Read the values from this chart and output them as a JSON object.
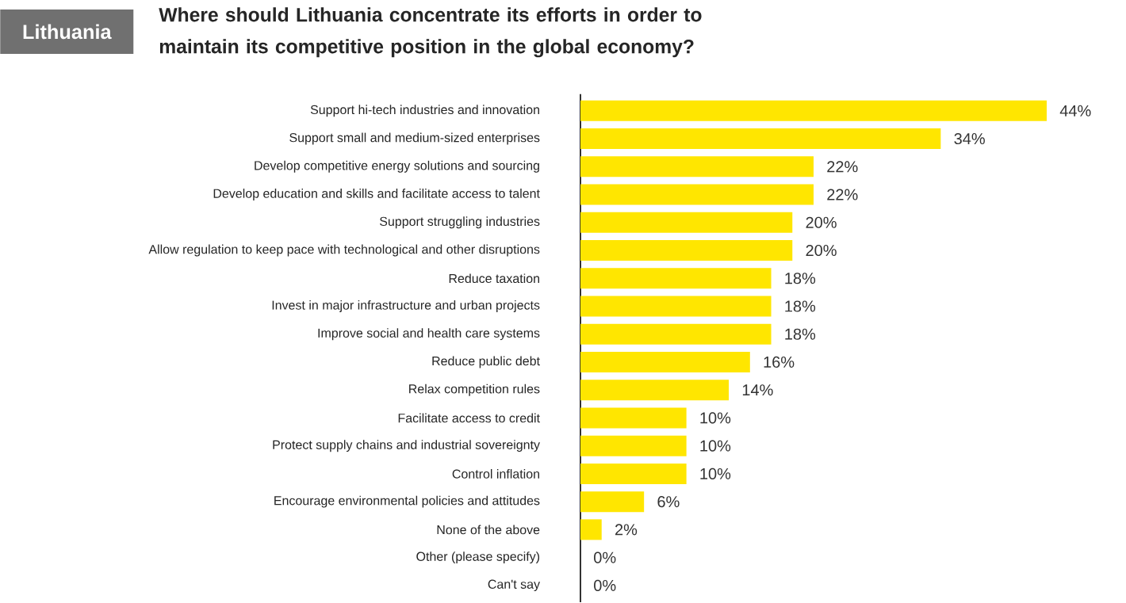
{
  "chart_data": {
    "type": "bar",
    "orientation": "horizontal",
    "title": "Where should Lithuania concentrate its efforts in order to maintain its competitive position in the global economy?",
    "subtitle": "Lithuania",
    "categories": [
      "Support hi-tech industries and innovation",
      "Support small and medium-sized enterprises",
      "Develop competitive energy solutions and sourcing",
      "Develop education and skills and facilitate access to talent",
      "Support struggling industries",
      "Allow regulation to keep pace with technological and other disruptions",
      "Reduce taxation",
      "Invest in major infrastructure and urban projects",
      "Improve social and health care systems",
      "Reduce public debt",
      "Relax competition rules",
      "Facilitate access to credit",
      "Protect supply chains and industrial sovereignty",
      "Control inflation",
      "Encourage environmental policies and attitudes",
      "None of the above",
      "Other (please specify)",
      "Can't say"
    ],
    "values": [
      44,
      34,
      22,
      22,
      20,
      20,
      18,
      18,
      18,
      16,
      14,
      10,
      10,
      10,
      6,
      2,
      0,
      0
    ],
    "value_labels": [
      "44%",
      "34%",
      "22%",
      "22%",
      "20%",
      "20%",
      "18%",
      "18%",
      "18%",
      "16%",
      "14%",
      "10%",
      "10%",
      "10%",
      "6%",
      "2%",
      "0%",
      "0%"
    ],
    "color": "#ffe600"
  }
}
